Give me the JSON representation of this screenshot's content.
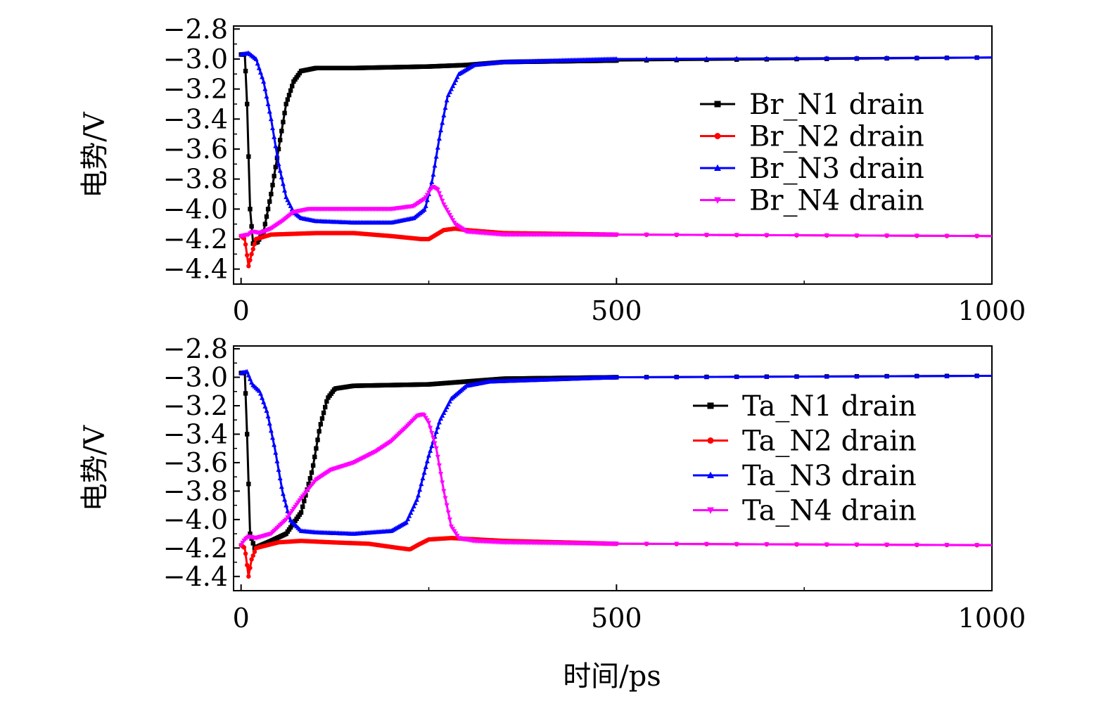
{
  "xlabel": "时间/ps",
  "chart_data": [
    {
      "type": "line",
      "ylabel": "电势/V",
      "xlim": [
        -10,
        1000
      ],
      "ylim": [
        -4.5,
        -2.78
      ],
      "xticks": [
        0,
        500,
        1000
      ],
      "yticks": [
        -2.8,
        -3.0,
        -3.2,
        -3.4,
        -3.6,
        -3.8,
        -4.0,
        -4.2,
        -4.4
      ],
      "ytick_labels": [
        "−2.8",
        "−3.0",
        "−3.2",
        "−3.4",
        "−3.6",
        "−3.8",
        "−4.0",
        "−4.2",
        "−4.4"
      ],
      "legend_position": "right",
      "series": [
        {
          "name": "Br_N1 drain",
          "color": "#000000",
          "marker": "square",
          "points": [
            [
              0,
              -2.97
            ],
            [
              5,
              -2.97
            ],
            [
              8,
              -3.3
            ],
            [
              12,
              -4.0
            ],
            [
              16,
              -4.23
            ],
            [
              22,
              -4.22
            ],
            [
              30,
              -4.15
            ],
            [
              40,
              -3.9
            ],
            [
              50,
              -3.6
            ],
            [
              60,
              -3.3
            ],
            [
              70,
              -3.15
            ],
            [
              80,
              -3.08
            ],
            [
              100,
              -3.06
            ],
            [
              150,
              -3.06
            ],
            [
              250,
              -3.05
            ],
            [
              300,
              -3.04
            ],
            [
              350,
              -3.02
            ],
            [
              500,
              -3.01
            ],
            [
              1000,
              -2.99
            ]
          ]
        },
        {
          "name": "Br_N2 drain",
          "color": "#ff0000",
          "marker": "circle",
          "points": [
            [
              0,
              -4.18
            ],
            [
              5,
              -4.2
            ],
            [
              10,
              -4.38
            ],
            [
              14,
              -4.3
            ],
            [
              20,
              -4.2
            ],
            [
              40,
              -4.17
            ],
            [
              100,
              -4.16
            ],
            [
              150,
              -4.16
            ],
            [
              200,
              -4.18
            ],
            [
              240,
              -4.2
            ],
            [
              250,
              -4.2
            ],
            [
              260,
              -4.17
            ],
            [
              270,
              -4.14
            ],
            [
              285,
              -4.13
            ],
            [
              300,
              -4.14
            ],
            [
              350,
              -4.16
            ],
            [
              500,
              -4.17
            ],
            [
              1000,
              -4.18
            ]
          ]
        },
        {
          "name": "Br_N3 drain",
          "color": "#0000ff",
          "marker": "triangle",
          "points": [
            [
              0,
              -2.97
            ],
            [
              10,
              -2.96
            ],
            [
              20,
              -3.0
            ],
            [
              30,
              -3.15
            ],
            [
              40,
              -3.4
            ],
            [
              50,
              -3.7
            ],
            [
              60,
              -3.92
            ],
            [
              70,
              -4.02
            ],
            [
              80,
              -4.06
            ],
            [
              100,
              -4.08
            ],
            [
              150,
              -4.09
            ],
            [
              200,
              -4.09
            ],
            [
              230,
              -4.06
            ],
            [
              245,
              -4.0
            ],
            [
              255,
              -3.8
            ],
            [
              265,
              -3.5
            ],
            [
              275,
              -3.25
            ],
            [
              290,
              -3.1
            ],
            [
              310,
              -3.04
            ],
            [
              350,
              -3.02
            ],
            [
              500,
              -3.0
            ],
            [
              1000,
              -2.99
            ]
          ]
        },
        {
          "name": "Br_N4 drain",
          "color": "#ff00ff",
          "marker": "triangle-down",
          "points": [
            [
              0,
              -4.18
            ],
            [
              10,
              -4.17
            ],
            [
              15,
              -4.15
            ],
            [
              25,
              -4.16
            ],
            [
              40,
              -4.13
            ],
            [
              55,
              -4.08
            ],
            [
              70,
              -4.02
            ],
            [
              90,
              -4.0
            ],
            [
              150,
              -4.0
            ],
            [
              200,
              -4.0
            ],
            [
              230,
              -3.98
            ],
            [
              245,
              -3.93
            ],
            [
              255,
              -3.85
            ],
            [
              262,
              -3.87
            ],
            [
              270,
              -3.97
            ],
            [
              285,
              -4.1
            ],
            [
              300,
              -4.15
            ],
            [
              350,
              -4.17
            ],
            [
              500,
              -4.17
            ],
            [
              1000,
              -4.18
            ]
          ]
        }
      ]
    },
    {
      "type": "line",
      "ylabel": "电势/V",
      "xlim": [
        -10,
        1000
      ],
      "ylim": [
        -4.5,
        -2.78
      ],
      "xticks": [
        0,
        500,
        1000
      ],
      "yticks": [
        -2.8,
        -3.0,
        -3.2,
        -3.4,
        -3.6,
        -3.8,
        -4.0,
        -4.2,
        -4.4
      ],
      "ytick_labels": [
        "−2.8",
        "−3.0",
        "−3.2",
        "−3.4",
        "−3.6",
        "−3.8",
        "−4.0",
        "−4.2",
        "−4.4"
      ],
      "legend_position": "right",
      "series": [
        {
          "name": "Ta_N1 drain",
          "color": "#000000",
          "marker": "square",
          "points": [
            [
              0,
              -2.97
            ],
            [
              5,
              -2.97
            ],
            [
              8,
              -3.4
            ],
            [
              12,
              -4.1
            ],
            [
              18,
              -4.2
            ],
            [
              40,
              -4.15
            ],
            [
              60,
              -4.1
            ],
            [
              80,
              -3.95
            ],
            [
              95,
              -3.65
            ],
            [
              105,
              -3.35
            ],
            [
              115,
              -3.15
            ],
            [
              125,
              -3.08
            ],
            [
              150,
              -3.06
            ],
            [
              250,
              -3.05
            ],
            [
              300,
              -3.03
            ],
            [
              350,
              -3.01
            ],
            [
              500,
              -3.0
            ],
            [
              1000,
              -2.99
            ]
          ]
        },
        {
          "name": "Ta_N2 drain",
          "color": "#ff0000",
          "marker": "circle",
          "points": [
            [
              0,
              -4.18
            ],
            [
              5,
              -4.2
            ],
            [
              10,
              -4.4
            ],
            [
              14,
              -4.28
            ],
            [
              20,
              -4.2
            ],
            [
              50,
              -4.16
            ],
            [
              80,
              -4.15
            ],
            [
              120,
              -4.16
            ],
            [
              170,
              -4.17
            ],
            [
              210,
              -4.2
            ],
            [
              225,
              -4.21
            ],
            [
              235,
              -4.18
            ],
            [
              250,
              -4.14
            ],
            [
              280,
              -4.13
            ],
            [
              350,
              -4.15
            ],
            [
              500,
              -4.17
            ],
            [
              1000,
              -4.18
            ]
          ]
        },
        {
          "name": "Ta_N3 drain",
          "color": "#0000ff",
          "marker": "triangle",
          "points": [
            [
              0,
              -2.97
            ],
            [
              8,
              -2.96
            ],
            [
              15,
              -3.05
            ],
            [
              25,
              -3.1
            ],
            [
              35,
              -3.25
            ],
            [
              45,
              -3.5
            ],
            [
              55,
              -3.8
            ],
            [
              65,
              -4.0
            ],
            [
              80,
              -4.08
            ],
            [
              100,
              -4.09
            ],
            [
              150,
              -4.1
            ],
            [
              200,
              -4.08
            ],
            [
              220,
              -4.02
            ],
            [
              235,
              -3.85
            ],
            [
              250,
              -3.55
            ],
            [
              265,
              -3.3
            ],
            [
              280,
              -3.15
            ],
            [
              300,
              -3.06
            ],
            [
              330,
              -3.03
            ],
            [
              500,
              -3.0
            ],
            [
              1000,
              -2.99
            ]
          ]
        },
        {
          "name": "Ta_N4 drain",
          "color": "#ff00ff",
          "marker": "triangle-down",
          "points": [
            [
              0,
              -4.18
            ],
            [
              5,
              -4.14
            ],
            [
              10,
              -4.12
            ],
            [
              20,
              -4.13
            ],
            [
              40,
              -4.1
            ],
            [
              60,
              -4.0
            ],
            [
              80,
              -3.85
            ],
            [
              100,
              -3.72
            ],
            [
              120,
              -3.65
            ],
            [
              150,
              -3.6
            ],
            [
              180,
              -3.52
            ],
            [
              200,
              -3.45
            ],
            [
              220,
              -3.35
            ],
            [
              235,
              -3.27
            ],
            [
              243,
              -3.26
            ],
            [
              250,
              -3.32
            ],
            [
              260,
              -3.5
            ],
            [
              270,
              -3.8
            ],
            [
              280,
              -4.05
            ],
            [
              290,
              -4.13
            ],
            [
              310,
              -4.15
            ],
            [
              350,
              -4.16
            ],
            [
              500,
              -4.17
            ],
            [
              1000,
              -4.18
            ]
          ]
        }
      ]
    }
  ]
}
